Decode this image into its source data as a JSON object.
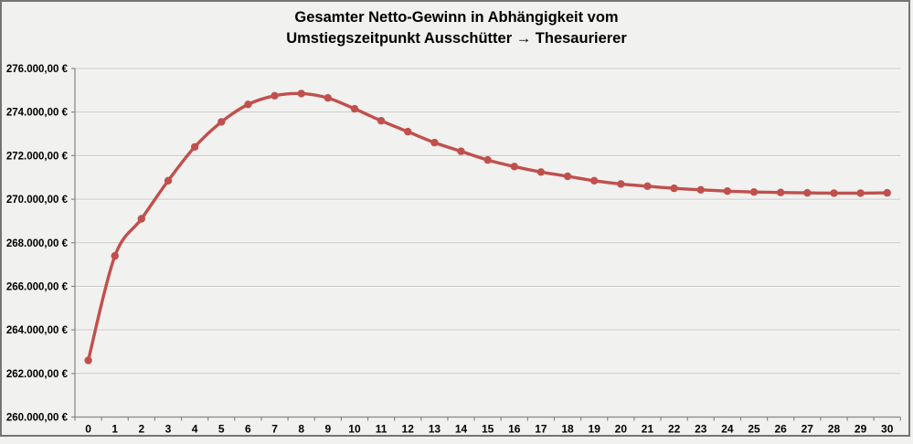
{
  "title": {
    "line1": "Gesamter Netto-Gewinn in Abhängigkeit vom",
    "line2": "Umstiegszeitpunkt Ausschütter → Thesaurierer"
  },
  "colors": {
    "background": "#f1f1ef",
    "frame_border": "#757575",
    "gridline": "#c7c7c6",
    "gridline_highlight": "#fafaf9",
    "axis": "#868686",
    "series": "#c0504d",
    "text": "#000000"
  },
  "chart_data": {
    "type": "line",
    "title": "Gesamter Netto-Gewinn in Abhängigkeit vom Umstiegszeitpunkt Ausschütter → Thesaurierer",
    "xlabel": "",
    "ylabel": "",
    "x": [
      0,
      1,
      2,
      3,
      4,
      5,
      6,
      7,
      8,
      9,
      10,
      11,
      12,
      13,
      14,
      15,
      16,
      17,
      18,
      19,
      20,
      21,
      22,
      23,
      24,
      25,
      26,
      27,
      28,
      29,
      30
    ],
    "xtick_labels": [
      "0",
      "1",
      "2",
      "3",
      "4",
      "5",
      "6",
      "7",
      "8",
      "9",
      "10",
      "11",
      "12",
      "13",
      "14",
      "15",
      "16",
      "17",
      "18",
      "19",
      "20",
      "21",
      "22",
      "23",
      "24",
      "25",
      "26",
      "27",
      "28",
      "29",
      "30"
    ],
    "series": [
      {
        "name": "Gesamter Netto-Gewinn",
        "color": "#c0504d",
        "marker": "circle",
        "smooth": true,
        "values": [
          262600,
          267400,
          269100,
          270850,
          272400,
          273550,
          274350,
          274750,
          274850,
          274650,
          274150,
          273600,
          273100,
          272600,
          272200,
          271800,
          271500,
          271250,
          271050,
          270850,
          270700,
          270600,
          270500,
          270430,
          270370,
          270330,
          270310,
          270290,
          270280,
          270280,
          270290
        ]
      }
    ],
    "ylim": [
      260000,
      276000
    ],
    "ytick_step": 2000,
    "yticks": [
      260000,
      262000,
      264000,
      266000,
      268000,
      270000,
      272000,
      274000,
      276000
    ],
    "ytick_labels": [
      "260.000,00 €",
      "262.000,00 €",
      "264.000,00 €",
      "266.000,00 €",
      "268.000,00 €",
      "270.000,00 €",
      "272.000,00 €",
      "274.000,00 €",
      "276.000,00 €"
    ],
    "grid": true,
    "legend_position": "none"
  }
}
